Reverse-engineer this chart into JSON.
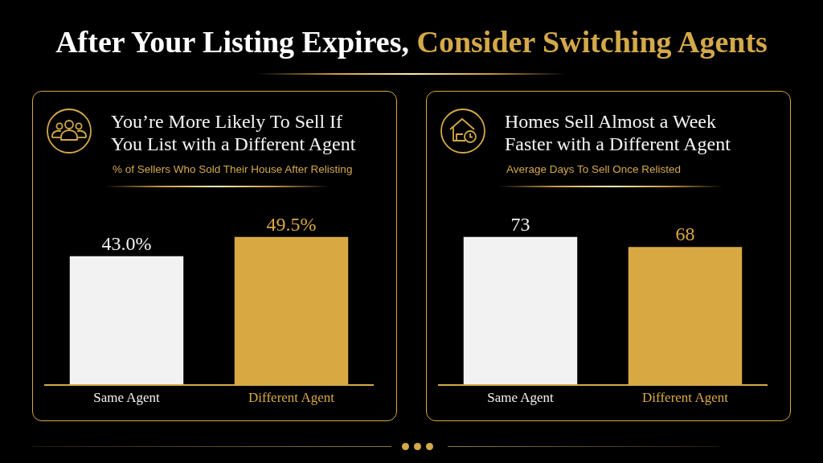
{
  "chart_data": [
    {
      "type": "other",
      "annotations": [
        "After Your Listing Expires,",
        "Consider Switching Agents"
      ]
    },
    {
      "type": "bar",
      "title": "You’re More Likely To Sell If You List with a Different Agent",
      "subtitle": "% of Sellers Who Sold Their House After Relisting",
      "categories": [
        "Same Agent",
        "Different Agent"
      ],
      "values": [
        43.0,
        49.5
      ],
      "colors": [
        "#f2f2f2",
        "#d8a943"
      ],
      "value_labels": [
        "43.0%",
        "49.5%"
      ]
    },
    {
      "type": "bar",
      "title": "Homes Sell Almost a Week Faster with a Different Agent",
      "subtitle": "Average Days To Sell Once Relisted",
      "categories": [
        "Same Agent",
        "Different Agent"
      ],
      "values": [
        73,
        68
      ],
      "colors": [
        "#f2f2f2",
        "#d8a943"
      ],
      "data_labels": true
    }
  ]
}
